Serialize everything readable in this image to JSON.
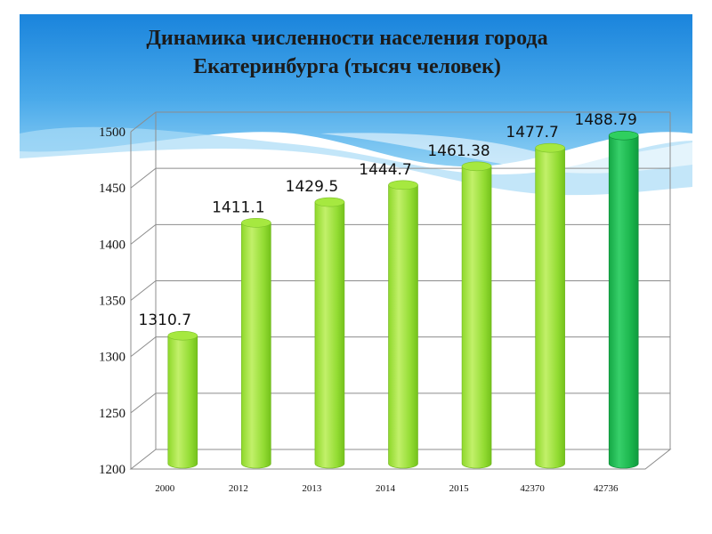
{
  "slide": {
    "title_line1": "Динамика численности населения города",
    "title_line2": "Екатеринбурга (тысяч человек)"
  },
  "colors": {
    "header_blue": "#2a8fe0",
    "bar_green": "#8fd92e",
    "bar_highlight": "#1fb94e",
    "grid": "#8c8c8c"
  },
  "chart_data": {
    "type": "bar",
    "title": "Динамика численности населения города Екатеринбурга (тысяч человек)",
    "categories": [
      "2000",
      "2012",
      "2013",
      "2014",
      "2015",
      "42370",
      "42736"
    ],
    "values": [
      1310.7,
      1411.1,
      1429.5,
      1444.7,
      1461.38,
      1477.7,
      1488.79
    ],
    "value_labels": [
      "1310.7",
      "1411.1",
      "1429.5",
      "1444.7",
      "1461.38",
      "1477.7",
      "1488.79"
    ],
    "highlight_index": 6,
    "ylim": [
      1200,
      1500
    ],
    "yticks": [
      1200,
      1250,
      1300,
      1350,
      1400,
      1450,
      1500
    ],
    "grid": true,
    "legend": "none"
  }
}
